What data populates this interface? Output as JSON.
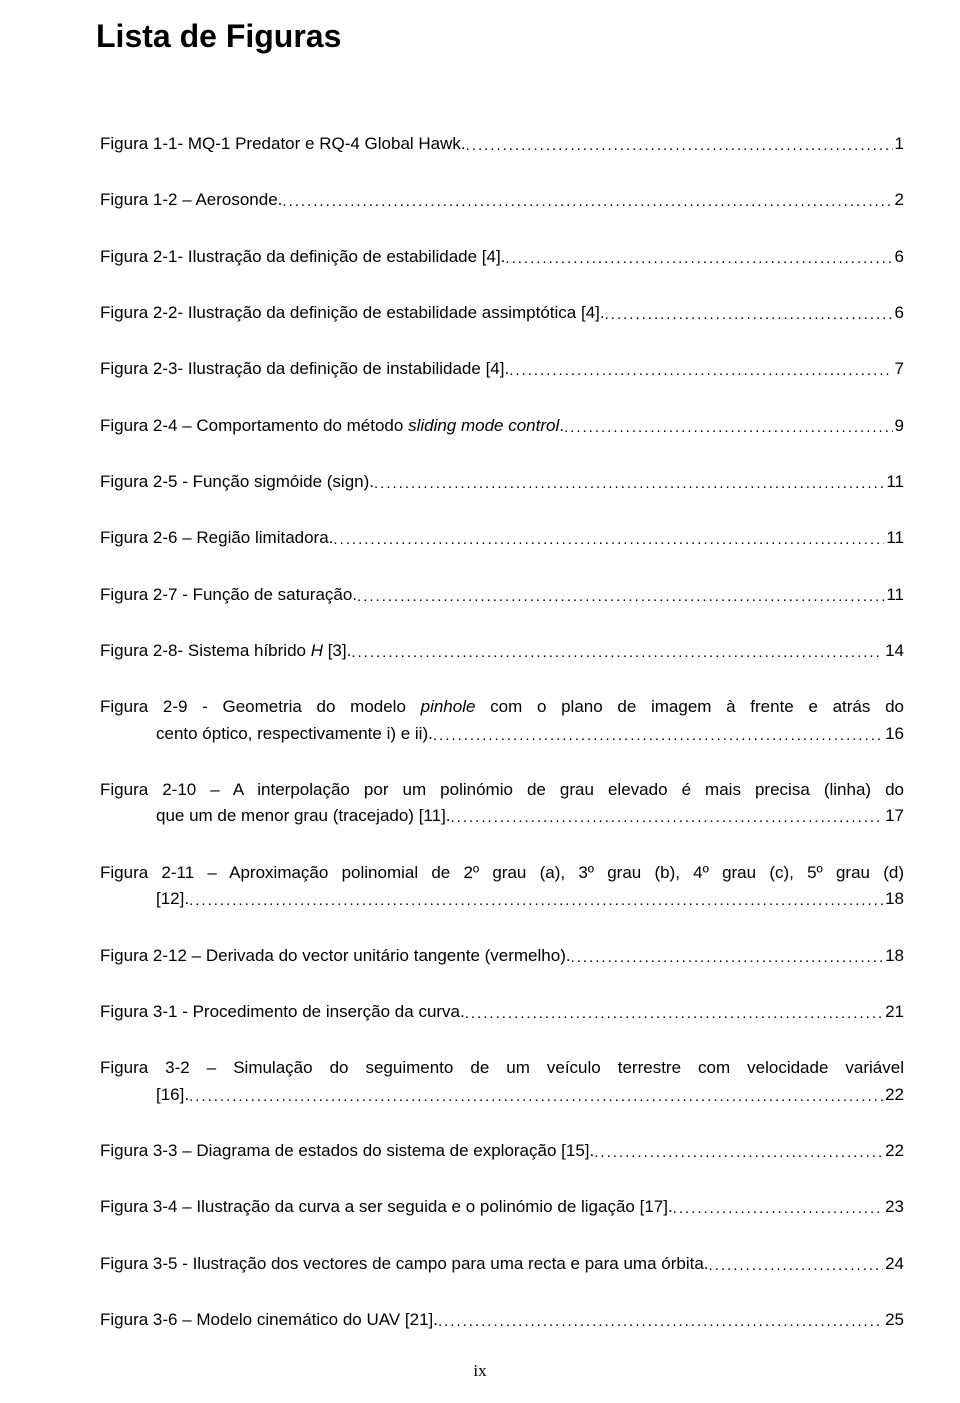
{
  "title": "Lista de Figuras",
  "page_number": "ix",
  "entries": [
    {
      "label": "Figura 1-1- MQ-1 Predator e RQ-4 Global Hawk. ",
      "page": "1"
    },
    {
      "label": "Figura 1-2 – Aerosonde. ",
      "page": "2"
    },
    {
      "label": "Figura 2-1- Ilustração da definição de estabilidade [4]. ",
      "page": "6"
    },
    {
      "label": "Figura 2-2- Ilustração da definição de estabilidade assimptótica [4]. ",
      "page": "6"
    },
    {
      "label": "Figura 2-3- Ilustração da definição de instabilidade [4]. ",
      "page": "7"
    },
    {
      "label_pre": "Figura 2-4 – Comportamento do método ",
      "label_italic": "sliding mode control",
      "label_post": ". ",
      "page": "9"
    },
    {
      "label": "Figura 2-5 - Função sigmóide (sign). ",
      "page": "11"
    },
    {
      "label": "Figura 2-6 – Região limitadora. ",
      "page": "11"
    },
    {
      "label": "Figura 2-7 - Função de saturação. ",
      "page": "11"
    },
    {
      "label_pre": "Figura 2-8- Sistema híbrido ",
      "label_italic": "H",
      "label_post": " [3]. ",
      "page": "14"
    },
    {
      "wrap_pre": "Figura 2-9 - Geometria do modelo ",
      "wrap_italic": "pinhole",
      "wrap_post": " com o plano de imagem à frente e atrás do",
      "cont": "cento óptico, respectivamente i) e ii). ",
      "page": "16"
    },
    {
      "wrap": "Figura 2-10 – A interpolação por um polinómio de grau elevado é mais precisa (linha) do",
      "cont": "que um de menor grau (tracejado) [11]. ",
      "page": "17"
    },
    {
      "wrap": "Figura 2-11 – Aproximação polinomial de 2º grau (a), 3º grau (b), 4º grau (c), 5º grau (d)",
      "cont": "[12]. ",
      "page": "18"
    },
    {
      "label": "Figura 2-12 – Derivada do vector unitário tangente (vermelho). ",
      "page": "18"
    },
    {
      "label": "Figura 3-1 - Procedimento de inserção da curva. ",
      "page": "21"
    },
    {
      "wrap": "Figura 3-2 – Simulação do seguimento de um veículo terrestre com velocidade variável",
      "cont": "[16]. ",
      "page": "22"
    },
    {
      "label": "Figura 3-3 – Diagrama de estados do sistema de exploração [15]. ",
      "page": "22"
    },
    {
      "label": "Figura 3-4 – Ilustração da curva a ser seguida e o polinómio de ligação [17]. ",
      "page": "23"
    },
    {
      "label": "Figura 3-5 - Ilustração dos vectores de campo para uma recta e para uma órbita. ",
      "page": "24"
    },
    {
      "label": "Figura 3-6 – Modelo cinemático do UAV [21]. ",
      "page": "25"
    }
  ],
  "colors": {
    "text": "#000000",
    "background": "#ffffff"
  },
  "typography": {
    "title_fontsize": 32,
    "body_fontsize": 17,
    "font_family": "Trebuchet MS"
  }
}
